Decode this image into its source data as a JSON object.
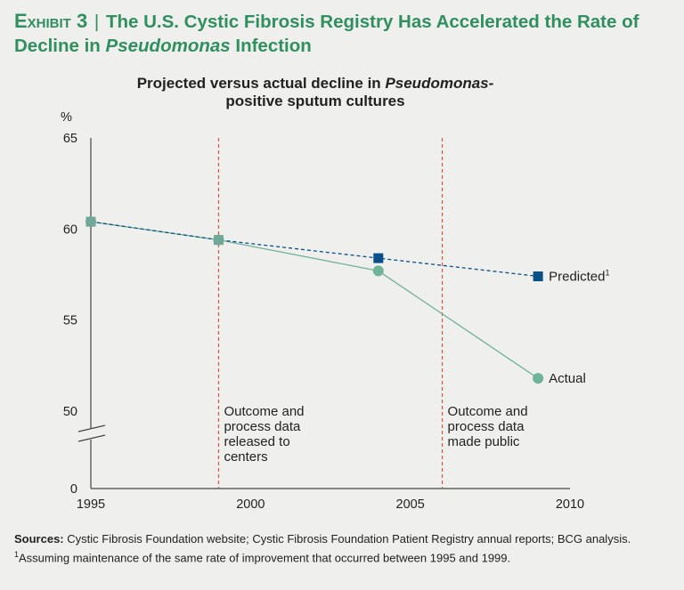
{
  "header": {
    "exhibit_label": "Exhibit 3",
    "separator": "|",
    "title_part1": "The U.S. Cystic Fibrosis Registry Has Accelerated the Rate of Decline in",
    "title_italic": "Pseudomonas",
    "title_part2": "Infection"
  },
  "chart_data": {
    "type": "line",
    "title_part1": "Projected versus actual decline in",
    "title_italic": "Pseudomonas-",
    "title_part2": "positive sputum cultures",
    "ylabel": "%",
    "ylim": [
      0,
      65
    ],
    "y_break": [
      0,
      50
    ],
    "y_ticks": [
      "0",
      "50",
      "55",
      "60",
      "65"
    ],
    "xlim": [
      1995,
      2010
    ],
    "x_ticks": [
      "1995",
      "2000",
      "2005",
      "2010"
    ],
    "series": [
      {
        "name": "Predicted",
        "superscript": "1",
        "color": "#0b4f8a",
        "marker": "square",
        "line": "dashed",
        "x": [
          1995,
          1999,
          2004,
          2009
        ],
        "values": [
          60.4,
          59.4,
          58.4,
          57.4
        ]
      },
      {
        "name": "Actual",
        "superscript": "",
        "color": "#6fb39a",
        "marker": "circle",
        "line": "solid",
        "x": [
          1995,
          1999,
          2004,
          2009
        ],
        "values": [
          60.4,
          59.4,
          57.7,
          51.8
        ]
      }
    ],
    "annotations": [
      {
        "x": 1999,
        "lines": [
          "Outcome and",
          "process data",
          "released to",
          "centers"
        ]
      },
      {
        "x": 2006,
        "lines": [
          "Outcome and",
          "process data",
          "made public"
        ]
      }
    ]
  },
  "footer": {
    "sources_label": "Sources:",
    "sources_text": "Cystic Fibrosis Foundation website; Cystic Fibrosis Foundation Patient Registry annual reports; BCG analysis.",
    "footnote_marker": "1",
    "footnote_text": "Assuming maintenance of the same rate of improvement that occurred between 1995 and 1999."
  }
}
